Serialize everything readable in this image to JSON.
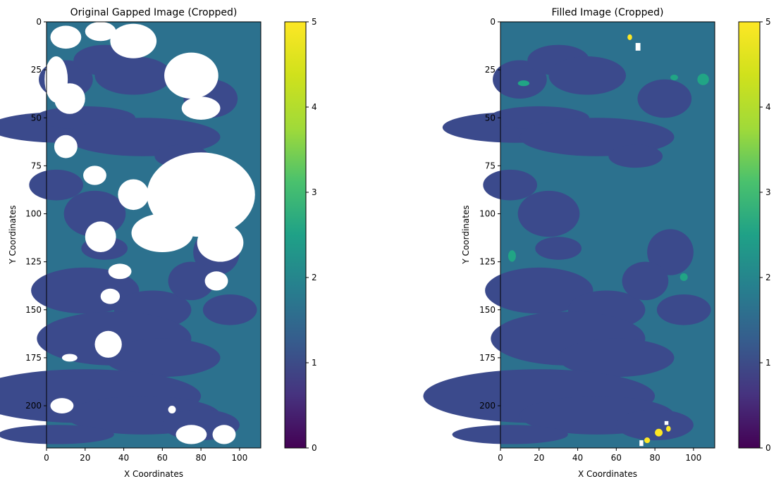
{
  "chart_data": [
    {
      "type": "heatmap",
      "title": "Original Gapped Image (Cropped)",
      "xlabel": "X Coordinates",
      "ylabel": "Y Coordinates",
      "xlim": [
        0,
        111
      ],
      "ylim": [
        222,
        0
      ],
      "xticks": [
        "0",
        "20",
        "40",
        "60",
        "80",
        "100"
      ],
      "yticks": [
        "0",
        "25",
        "50",
        "75",
        "100",
        "125",
        "150",
        "175",
        "200"
      ],
      "colorbar": {
        "ticks": [
          "0",
          "1",
          "2",
          "3",
          "4",
          "5"
        ],
        "range": [
          0,
          5
        ],
        "colormap": "viridis"
      },
      "grid": false
    },
    {
      "type": "heatmap",
      "title": "Filled Image (Cropped)",
      "xlabel": "X Coordinates",
      "ylabel": "Y Coordinates",
      "xlim": [
        0,
        111
      ],
      "ylim": [
        222,
        0
      ],
      "xticks": [
        "0",
        "20",
        "40",
        "60",
        "80",
        "100"
      ],
      "yticks": [
        "0",
        "25",
        "50",
        "75",
        "100",
        "125",
        "150",
        "175",
        "200"
      ],
      "colorbar": {
        "ticks": [
          "0",
          "1",
          "2",
          "3",
          "4",
          "5"
        ],
        "range": [
          0,
          5
        ],
        "colormap": "viridis"
      },
      "grid": false
    }
  ],
  "colors": {
    "value_1": "#3b4a8c",
    "value_2": "#2c718e",
    "value_3": "#21a585",
    "value_5": "#fde725",
    "gap": "#ffffff"
  }
}
